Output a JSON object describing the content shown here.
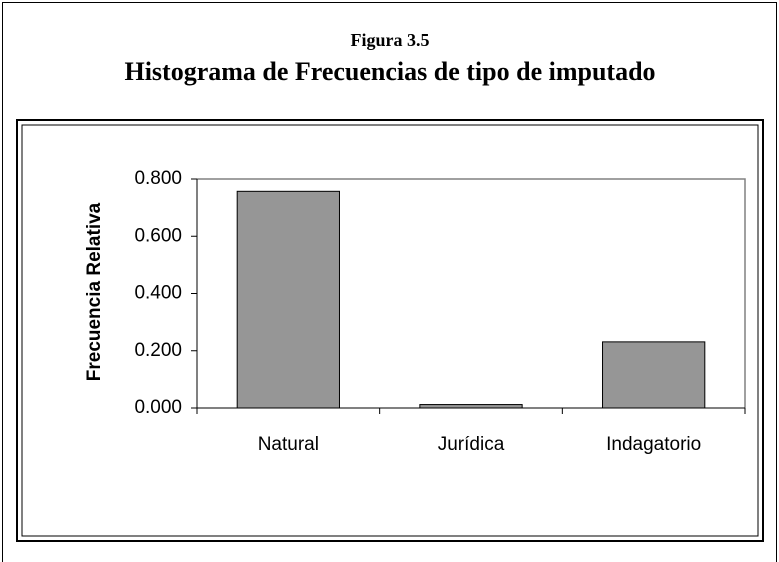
{
  "chart_data": {
    "type": "bar",
    "supertitle": "Figura 3.5",
    "title": "Histograma de Frecuencias de tipo de imputado",
    "y_label": "Frecuencia Relativa",
    "categories": [
      "Natural",
      "Jurídica",
      "Indagatorio"
    ],
    "values": [
      0.757,
      0.012,
      0.231
    ],
    "color": "#969696",
    "ylim": [
      0,
      0.8
    ],
    "yticks": [
      {
        "value": 0,
        "label": "0.000"
      },
      {
        "value": 0.2,
        "label": "0.200"
      },
      {
        "value": 0.4,
        "label": "0.400"
      },
      {
        "value": 0.6,
        "label": "0.600"
      },
      {
        "value": 0.8,
        "label": "0.800"
      }
    ],
    "grid": false
  }
}
